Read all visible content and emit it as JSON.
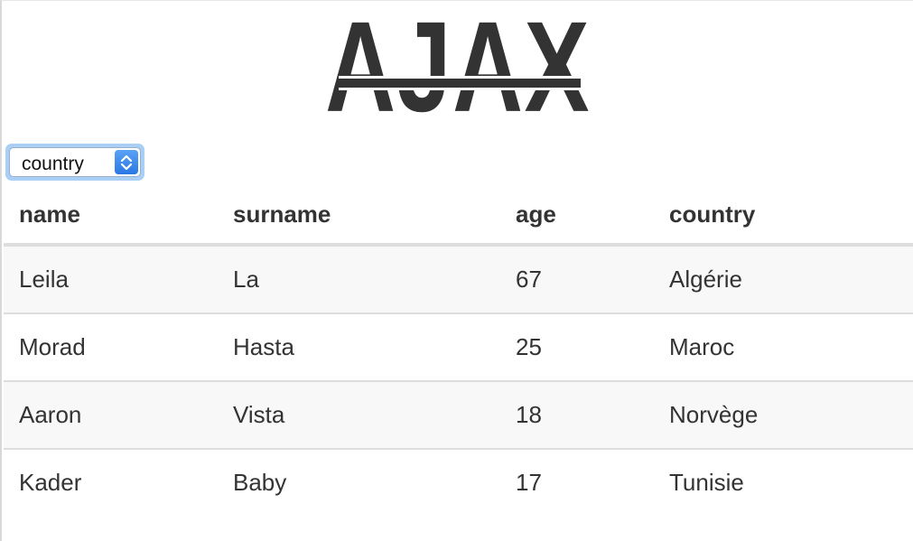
{
  "logo": {
    "text": "AJAX"
  },
  "filter": {
    "selected": "country"
  },
  "table": {
    "headers": [
      "name",
      "surname",
      "age",
      "country"
    ],
    "rows": [
      [
        "Leila",
        "La",
        "67",
        "Algérie"
      ],
      [
        "Morad",
        "Hasta",
        "25",
        "Maroc"
      ],
      [
        "Aaron",
        "Vista",
        "18",
        "Norvège"
      ],
      [
        "Kader",
        "Baby",
        "17",
        "Tunisie"
      ]
    ]
  },
  "colors": {
    "text": "#333333",
    "select_accent": "#2a78e4",
    "row_stripe": "#f8f8f8"
  }
}
